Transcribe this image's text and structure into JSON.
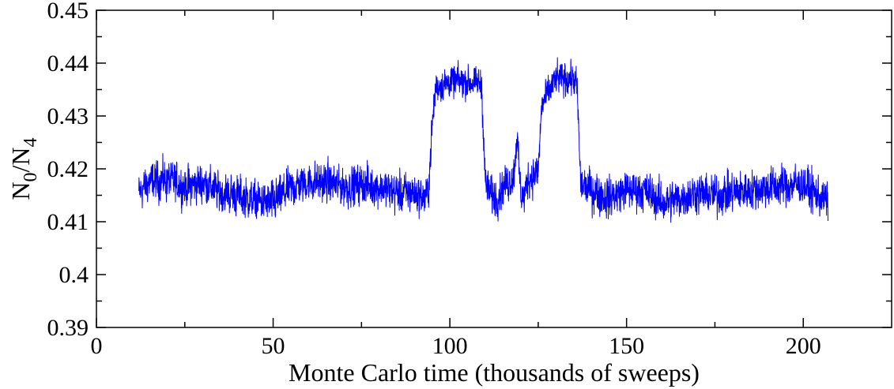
{
  "chart_data": {
    "type": "line",
    "xlabel": "Monte Carlo time (thousands of sweeps)",
    "ylabel": {
      "base": "N",
      "sub1": "0",
      "slash": "/",
      "base2": "N",
      "sub2": "4"
    },
    "xlim": [
      0,
      225
    ],
    "ylim": [
      0.39,
      0.45
    ],
    "x_ticks": [
      0,
      50,
      100,
      150,
      200
    ],
    "x_tick_labels": [
      "0",
      "50",
      "100",
      "150",
      "200"
    ],
    "y_ticks": [
      0.39,
      0.4,
      0.41,
      0.42,
      0.43,
      0.44,
      0.45
    ],
    "y_tick_labels": [
      "0.39",
      "0.4",
      "0.41",
      "0.42",
      "0.43",
      "0.44",
      "0.45"
    ],
    "x_minor_ticks": [
      25,
      75,
      125,
      175
    ],
    "y_minor_ticks": [
      0.395,
      0.405,
      0.415,
      0.425,
      0.435,
      0.445
    ],
    "grid": false,
    "legend": "none",
    "series": [
      {
        "color": "#0000ff",
        "x": [
          12,
          15,
          20,
          25,
          30,
          35,
          40,
          45,
          50,
          55,
          60,
          65,
          70,
          75,
          80,
          85,
          90,
          93,
          94,
          95,
          96,
          100,
          105,
          109,
          110,
          111,
          113,
          115,
          118,
          119,
          120,
          121,
          122,
          125,
          126,
          130,
          135,
          136,
          137,
          140,
          145,
          150,
          155,
          160,
          165,
          170,
          175,
          180,
          185,
          190,
          195,
          200,
          205,
          207
        ],
        "values": [
          0.4155,
          0.4175,
          0.418,
          0.4165,
          0.4175,
          0.4155,
          0.415,
          0.414,
          0.4135,
          0.4165,
          0.4175,
          0.4175,
          0.4165,
          0.417,
          0.4165,
          0.4155,
          0.4155,
          0.4145,
          0.4165,
          0.428,
          0.4355,
          0.4365,
          0.4365,
          0.436,
          0.4175,
          0.4155,
          0.4145,
          0.4165,
          0.4185,
          0.426,
          0.4155,
          0.4145,
          0.418,
          0.4195,
          0.432,
          0.437,
          0.437,
          0.4355,
          0.417,
          0.416,
          0.4145,
          0.416,
          0.416,
          0.4135,
          0.4145,
          0.4155,
          0.415,
          0.4155,
          0.416,
          0.4165,
          0.417,
          0.417,
          0.4145,
          0.414
        ],
        "fluctuation_amplitude": [
          0.0045,
          0.0045,
          0.0048,
          0.0045,
          0.0048,
          0.0045,
          0.0048,
          0.0045,
          0.005,
          0.0048,
          0.0045,
          0.0048,
          0.0045,
          0.0048,
          0.0045,
          0.0048,
          0.0045,
          0.0045,
          0.0045,
          0.004,
          0.0038,
          0.0038,
          0.0038,
          0.0038,
          0.0045,
          0.0045,
          0.0045,
          0.0045,
          0.0045,
          0.004,
          0.0045,
          0.0045,
          0.0045,
          0.0045,
          0.004,
          0.0038,
          0.0038,
          0.0038,
          0.0045,
          0.0048,
          0.0048,
          0.0045,
          0.0048,
          0.0048,
          0.0045,
          0.0048,
          0.0048,
          0.0048,
          0.0045,
          0.0048,
          0.0048,
          0.0045,
          0.0048,
          0.0045
        ]
      }
    ]
  }
}
